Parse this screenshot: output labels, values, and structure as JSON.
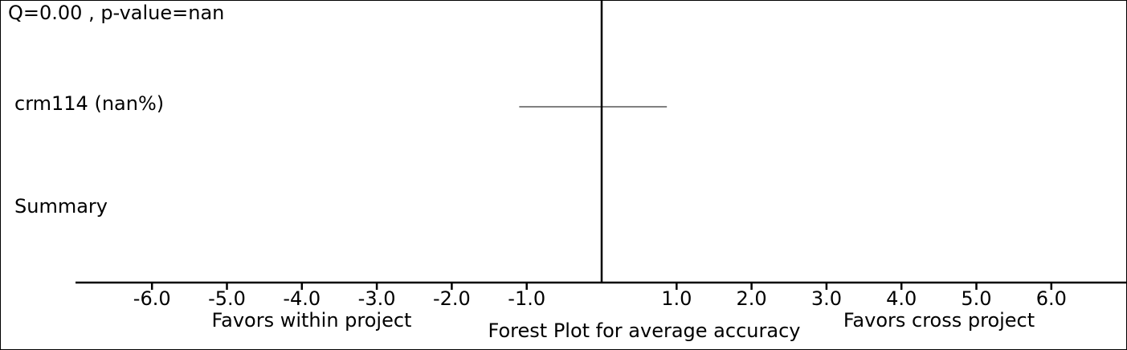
{
  "chart_data": {
    "type": "forest",
    "title": "Forest Plot for average accuracy",
    "heterogeneity": "Q=0.00 , p-value=nan",
    "left_label": "Favors within project",
    "right_label": "Favors cross project",
    "xlim": [
      -7.0,
      7.0
    ],
    "x_ticks": [
      -6.0,
      -5.0,
      -4.0,
      -3.0,
      -2.0,
      -1.0,
      1.0,
      2.0,
      3.0,
      4.0,
      5.0,
      6.0
    ],
    "x_tick_labels": [
      "-6.0",
      "-5.0",
      "-4.0",
      "-3.0",
      "-2.0",
      "-1.0",
      "1.0",
      "2.0",
      "3.0",
      "4.0",
      "5.0",
      "6.0"
    ],
    "reference_line": 0,
    "studies": [
      {
        "label": "crm114 (nan%)",
        "ci_low": -1.1,
        "ci_high": 0.87
      }
    ],
    "summary": {
      "label": "Summary"
    },
    "colors": {
      "line": "#000000",
      "background": "#ffffff"
    }
  }
}
